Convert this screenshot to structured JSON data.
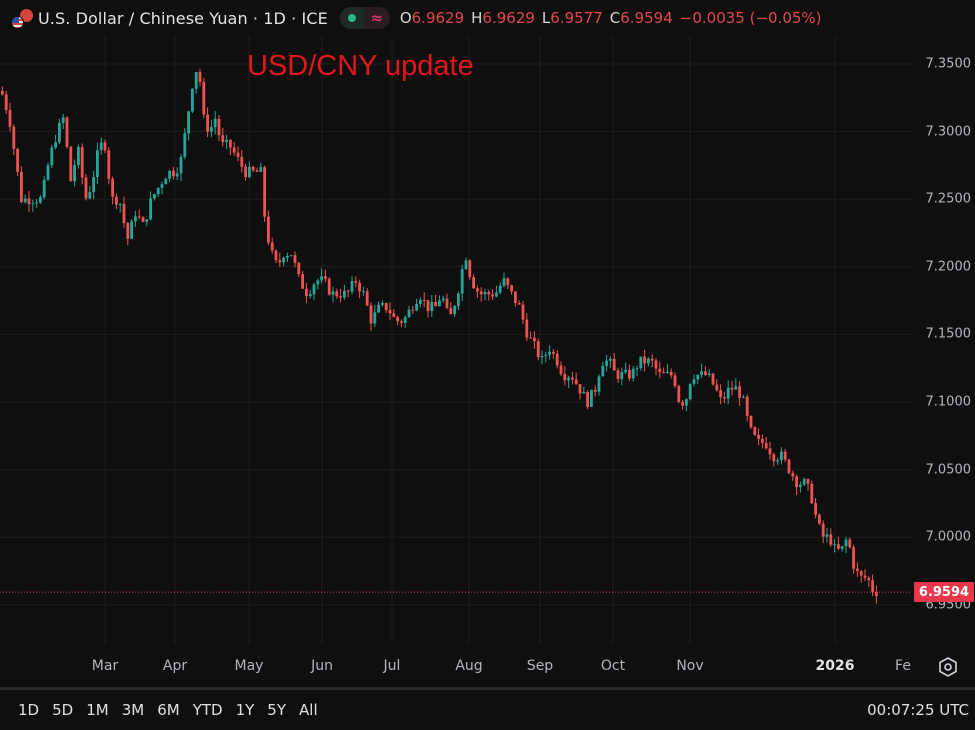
{
  "header": {
    "symbol_title": "U.S. Dollar / Chinese Yuan · 1D · ICE",
    "market_status_icon": "market-open-dot",
    "data_type_icon": "approx-icon",
    "ohlc": {
      "open_label": "O",
      "open_value": "6.9629",
      "high_label": "H",
      "high_value": "6.9629",
      "low_label": "L",
      "low_value": "6.9577",
      "close_label": "C",
      "close_value": "6.9594",
      "change": "−0.0035 (−0.05%)"
    }
  },
  "annotation": {
    "text": "USD/CNY update",
    "color": "#e0161c"
  },
  "yaxis": {
    "labels": [
      "7.3500",
      "7.3000",
      "7.2500",
      "7.2000",
      "7.1500",
      "7.1000",
      "7.0500",
      "7.0000",
      "6.9500"
    ],
    "current_price": "6.9594",
    "current_price_color": "#e8374a"
  },
  "xaxis": {
    "labels": [
      "Mar",
      "Apr",
      "May",
      "Jun",
      "Jul",
      "Aug",
      "Sep",
      "Oct",
      "Nov",
      "2026",
      "Fe"
    ],
    "settings_icon": "gear-hexagon-icon"
  },
  "footer": {
    "ranges": [
      "1D",
      "5D",
      "1M",
      "3M",
      "6M",
      "YTD",
      "1Y",
      "5Y",
      "All"
    ],
    "clock": "00:07:25 UTC"
  },
  "colors": {
    "up": "#26a69a",
    "down": "#ef5350",
    "background": "#0f0f0f",
    "grid": "#1e1e1e"
  },
  "chart_data": {
    "type": "candlestick",
    "title": "U.S. Dollar / Chinese Yuan · 1D · ICE",
    "annotation": "USD/CNY update",
    "xlabel": "",
    "ylabel": "",
    "ylim": [
      6.93,
      7.37
    ],
    "yticks": [
      7.35,
      7.3,
      7.25,
      7.2,
      7.15,
      7.1,
      7.05,
      7.0,
      6.95
    ],
    "xticks": [
      "Mar",
      "Apr",
      "May",
      "Jun",
      "Jul",
      "Aug",
      "Sep",
      "Oct",
      "Nov",
      "2026",
      "Fe"
    ],
    "grid": true,
    "last": {
      "open": 6.9629,
      "high": 6.9629,
      "low": 6.9577,
      "close": 6.9594,
      "change": -0.0035,
      "change_pct": -0.05
    },
    "approx_monthly_close": [
      {
        "month": "Feb 2025",
        "close": 7.28
      },
      {
        "month": "Mar 2025",
        "close": 7.26
      },
      {
        "month": "Apr 2025",
        "close": 7.29
      },
      {
        "month": "May 2025",
        "close": 7.19
      },
      {
        "month": "Jun 2025",
        "close": 7.17
      },
      {
        "month": "Jul 2025",
        "close": 7.2
      },
      {
        "month": "Aug 2025",
        "close": 7.13
      },
      {
        "month": "Sep 2025",
        "close": 7.12
      },
      {
        "month": "Oct 2025",
        "close": 7.12
      },
      {
        "month": "Nov 2025",
        "close": 7.07
      },
      {
        "month": "Dec 2025",
        "close": 7.0
      },
      {
        "month": "Jan 2026",
        "close": 6.9594
      }
    ],
    "period_high": 7.35,
    "period_low": 6.9577,
    "path": [
      [
        0,
        7.33
      ],
      [
        8,
        7.31
      ],
      [
        14,
        7.28
      ],
      [
        20,
        7.25
      ],
      [
        30,
        7.25
      ],
      [
        40,
        7.25
      ],
      [
        48,
        7.28
      ],
      [
        56,
        7.3
      ],
      [
        62,
        7.31
      ],
      [
        70,
        7.26
      ],
      [
        76,
        7.29
      ],
      [
        84,
        7.25
      ],
      [
        90,
        7.26
      ],
      [
        98,
        7.29
      ],
      [
        104,
        7.29
      ],
      [
        110,
        7.25
      ],
      [
        118,
        7.25
      ],
      [
        126,
        7.22
      ],
      [
        134,
        7.24
      ],
      [
        142,
        7.23
      ],
      [
        150,
        7.25
      ],
      [
        158,
        7.26
      ],
      [
        166,
        7.27
      ],
      [
        174,
        7.27
      ],
      [
        180,
        7.28
      ],
      [
        186,
        7.31
      ],
      [
        192,
        7.34
      ],
      [
        197,
        7.35
      ],
      [
        202,
        7.31
      ],
      [
        208,
        7.3
      ],
      [
        214,
        7.31
      ],
      [
        220,
        7.29
      ],
      [
        228,
        7.29
      ],
      [
        236,
        7.28
      ],
      [
        244,
        7.27
      ],
      [
        252,
        7.27
      ],
      [
        260,
        7.27
      ],
      [
        264,
        7.23
      ],
      [
        270,
        7.21
      ],
      [
        276,
        7.2
      ],
      [
        282,
        7.21
      ],
      [
        290,
        7.21
      ],
      [
        298,
        7.19
      ],
      [
        306,
        7.18
      ],
      [
        314,
        7.19
      ],
      [
        322,
        7.19
      ],
      [
        330,
        7.18
      ],
      [
        338,
        7.18
      ],
      [
        346,
        7.18
      ],
      [
        354,
        7.19
      ],
      [
        362,
        7.18
      ],
      [
        370,
        7.16
      ],
      [
        378,
        7.17
      ],
      [
        386,
        7.17
      ],
      [
        394,
        7.16
      ],
      [
        402,
        7.16
      ],
      [
        410,
        7.17
      ],
      [
        418,
        7.18
      ],
      [
        426,
        7.17
      ],
      [
        434,
        7.17
      ],
      [
        440,
        7.18
      ],
      [
        448,
        7.16
      ],
      [
        456,
        7.18
      ],
      [
        464,
        7.21
      ],
      [
        470,
        7.19
      ],
      [
        478,
        7.18
      ],
      [
        486,
        7.18
      ],
      [
        494,
        7.18
      ],
      [
        502,
        7.19
      ],
      [
        510,
        7.18
      ],
      [
        518,
        7.17
      ],
      [
        526,
        7.15
      ],
      [
        534,
        7.14
      ],
      [
        540,
        7.13
      ],
      [
        548,
        7.14
      ],
      [
        556,
        7.13
      ],
      [
        562,
        7.12
      ],
      [
        570,
        7.12
      ],
      [
        578,
        7.11
      ],
      [
        586,
        7.1
      ],
      [
        594,
        7.11
      ],
      [
        600,
        7.13
      ],
      [
        608,
        7.13
      ],
      [
        614,
        7.12
      ],
      [
        622,
        7.12
      ],
      [
        630,
        7.12
      ],
      [
        638,
        7.13
      ],
      [
        644,
        7.13
      ],
      [
        650,
        7.13
      ],
      [
        658,
        7.12
      ],
      [
        666,
        7.12
      ],
      [
        672,
        7.12
      ],
      [
        678,
        7.1
      ],
      [
        684,
        7.1
      ],
      [
        690,
        7.12
      ],
      [
        698,
        7.12
      ],
      [
        706,
        7.12
      ],
      [
        714,
        7.11
      ],
      [
        720,
        7.1
      ],
      [
        728,
        7.11
      ],
      [
        736,
        7.11
      ],
      [
        742,
        7.1
      ],
      [
        748,
        7.08
      ],
      [
        756,
        7.07
      ],
      [
        764,
        7.07
      ],
      [
        772,
        7.06
      ],
      [
        780,
        7.06
      ],
      [
        788,
        7.05
      ],
      [
        796,
        7.04
      ],
      [
        804,
        7.04
      ],
      [
        810,
        7.03
      ],
      [
        816,
        7.01
      ],
      [
        822,
        7.0
      ],
      [
        828,
        7.0
      ],
      [
        834,
        6.99
      ],
      [
        840,
        6.99
      ],
      [
        846,
        7.0
      ],
      [
        852,
        6.98
      ],
      [
        858,
        6.97
      ],
      [
        866,
        6.97
      ],
      [
        872,
        6.96
      ],
      [
        878,
        6.9594
      ]
    ]
  }
}
